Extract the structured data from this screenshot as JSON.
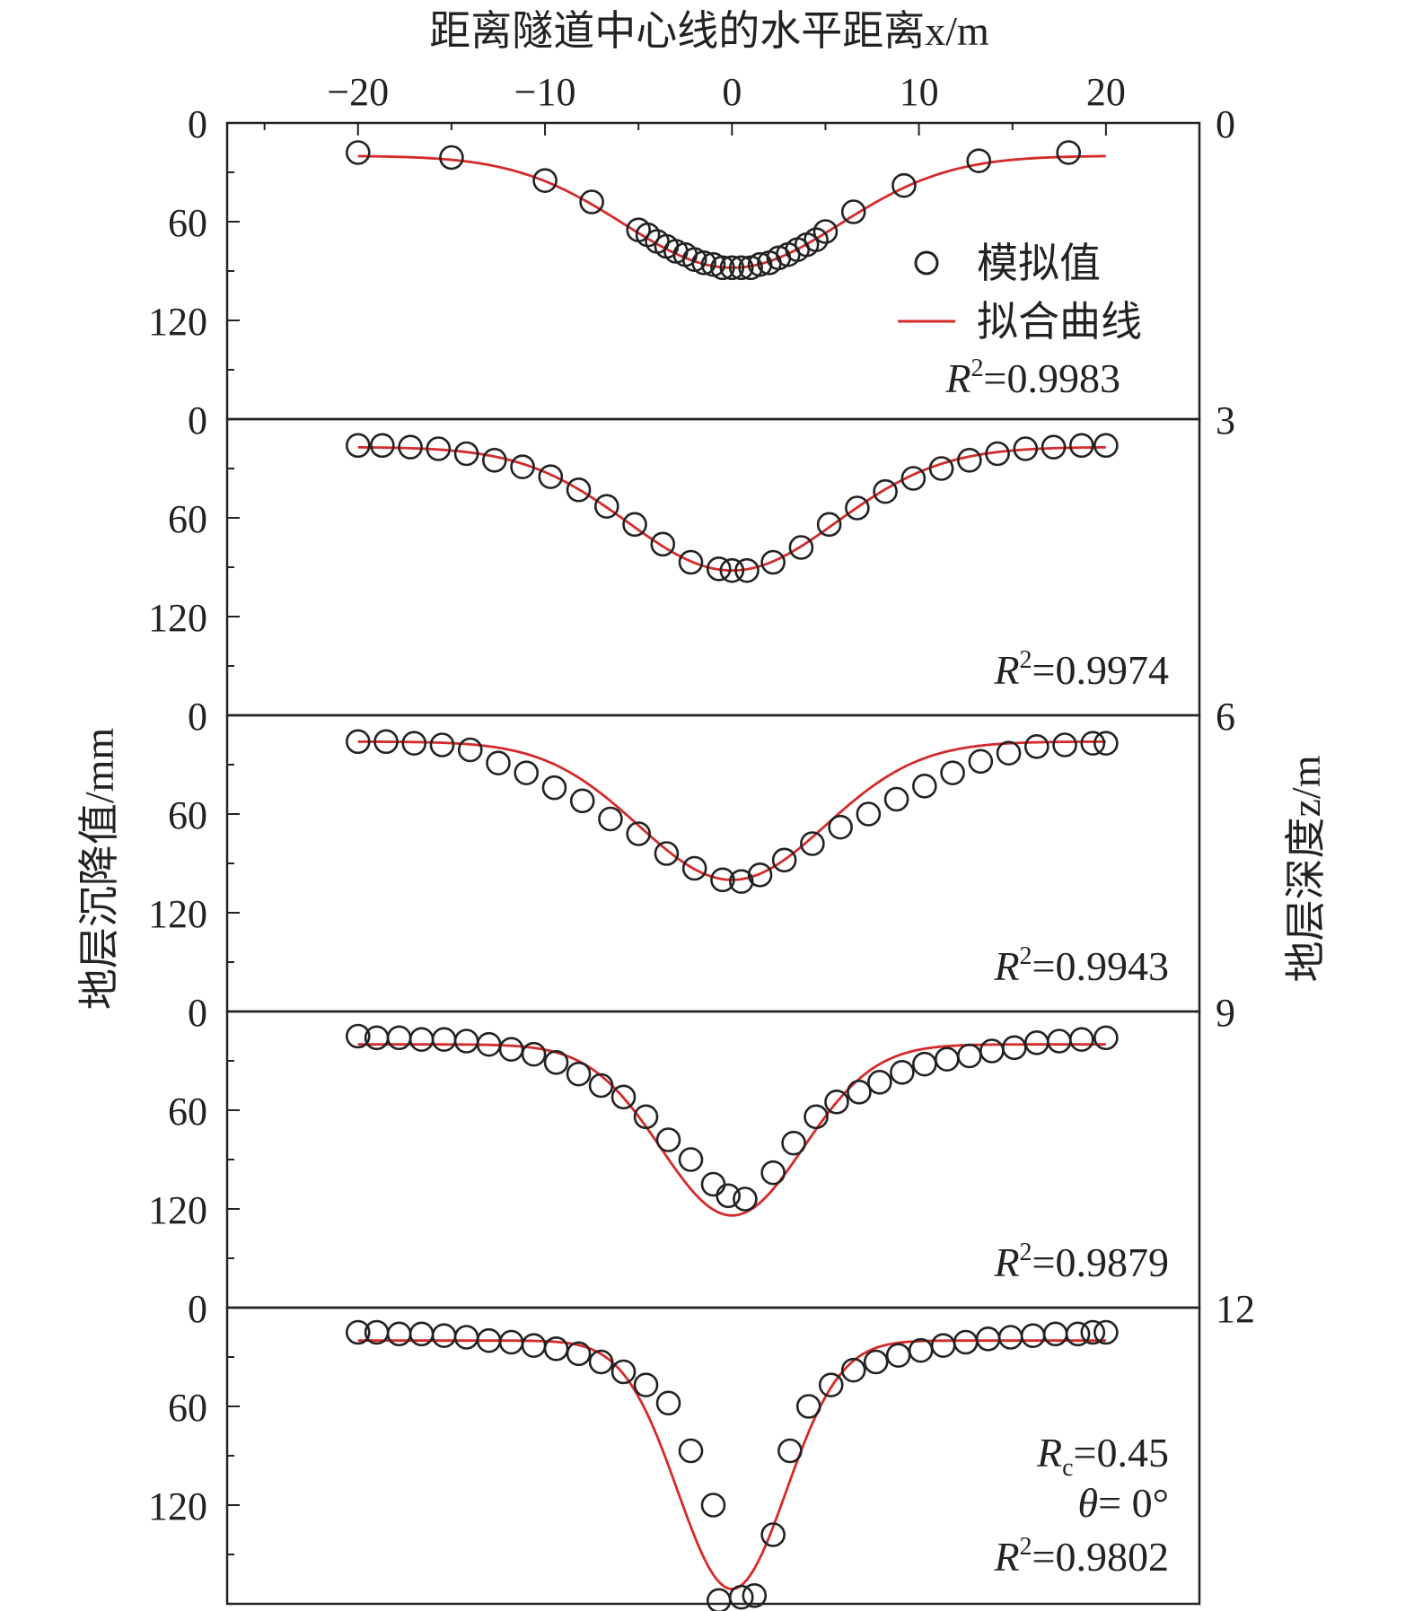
{
  "chart_data": {
    "type": "scatter",
    "xlabel": "距离隧道中心线的水平距离x/m",
    "ylabel_left": "地层沉降值/mm",
    "ylabel_right": "地层深度z/m",
    "x_ticks": [
      "−20",
      "−10",
      "0",
      "10",
      "20"
    ],
    "x_tick_values": [
      -20,
      -10,
      0,
      10,
      20
    ],
    "xlim": [
      -27,
      25
    ],
    "ylim_panel": [
      0,
      180
    ],
    "y_ticks_left": [
      "0",
      "60",
      "120"
    ],
    "y_tick_values_left": [
      0,
      60,
      120
    ],
    "right_axis_ticks": [
      "0",
      "3",
      "6",
      "9",
      "12"
    ],
    "legend": {
      "placement": "top-right",
      "scatter_label": "模拟值",
      "line_label": "拟合曲线",
      "line_color": "#d42a2a"
    },
    "panels": [
      {
        "depth": "0",
        "r2_label": "R",
        "r2_sup": "2",
        "r2_value": "=0.9983",
        "fit": {
          "amplitude": 68,
          "offset": 20,
          "sigma": 5.8
        },
        "simulated": [
          [
            -20,
            18
          ],
          [
            -15,
            21
          ],
          [
            -10,
            35
          ],
          [
            -7.5,
            48
          ],
          [
            -5,
            65
          ],
          [
            -4.5,
            68
          ],
          [
            -4,
            72
          ],
          [
            -3.5,
            75
          ],
          [
            -3,
            78
          ],
          [
            -2.5,
            80
          ],
          [
            -2,
            83
          ],
          [
            -1.5,
            85
          ],
          [
            -1,
            86
          ],
          [
            -0.5,
            88
          ],
          [
            0,
            88
          ],
          [
            0.5,
            88
          ],
          [
            1,
            88
          ],
          [
            1.5,
            86
          ],
          [
            2,
            85
          ],
          [
            2.5,
            82
          ],
          [
            3,
            80
          ],
          [
            3.5,
            77
          ],
          [
            4,
            74
          ],
          [
            4.5,
            71
          ],
          [
            5,
            66
          ],
          [
            6.5,
            54
          ],
          [
            9.2,
            38
          ],
          [
            13.2,
            23
          ],
          [
            18,
            18
          ]
        ]
      },
      {
        "depth": "3",
        "r2_label": "R",
        "r2_sup": "2",
        "r2_value": "=0.9974",
        "fit": {
          "amplitude": 75,
          "offset": 17,
          "sigma": 5.6
        },
        "simulated": [
          [
            -20,
            16
          ],
          [
            -18.7,
            16
          ],
          [
            -17.2,
            17
          ],
          [
            -15.7,
            18
          ],
          [
            -14.2,
            21
          ],
          [
            -12.7,
            25
          ],
          [
            -11.2,
            29
          ],
          [
            -9.7,
            35
          ],
          [
            -8.2,
            43
          ],
          [
            -6.7,
            53
          ],
          [
            -5.2,
            64
          ],
          [
            -3.7,
            76
          ],
          [
            -2.2,
            87
          ],
          [
            -0.7,
            91
          ],
          [
            0,
            92
          ],
          [
            0.8,
            92
          ],
          [
            2.2,
            87
          ],
          [
            3.7,
            78
          ],
          [
            5.2,
            64
          ],
          [
            6.7,
            54
          ],
          [
            8.2,
            44
          ],
          [
            9.7,
            36
          ],
          [
            11.2,
            30
          ],
          [
            12.7,
            25
          ],
          [
            14.2,
            21
          ],
          [
            15.7,
            18
          ],
          [
            17.2,
            17
          ],
          [
            18.7,
            16
          ],
          [
            20,
            16
          ]
        ]
      },
      {
        "depth": "6",
        "r2_label": "R",
        "r2_sup": "2",
        "r2_value": "=0.9943",
        "fit": {
          "amplitude": 84,
          "offset": 16,
          "sigma": 5.0
        },
        "simulated": [
          [
            -20,
            16
          ],
          [
            -18.5,
            16
          ],
          [
            -17,
            17
          ],
          [
            -15.5,
            18
          ],
          [
            -14,
            21
          ],
          [
            -12.5,
            29
          ],
          [
            -11,
            35
          ],
          [
            -9.5,
            44
          ],
          [
            -8,
            52
          ],
          [
            -6.5,
            63
          ],
          [
            -5,
            72
          ],
          [
            -3.5,
            84
          ],
          [
            -2,
            93
          ],
          [
            -0.5,
            100
          ],
          [
            0.5,
            101
          ],
          [
            1.5,
            97
          ],
          [
            2.8,
            88
          ],
          [
            4.3,
            78
          ],
          [
            5.8,
            68
          ],
          [
            7.3,
            60
          ],
          [
            8.8,
            51
          ],
          [
            10.3,
            43
          ],
          [
            11.8,
            35
          ],
          [
            13.3,
            28
          ],
          [
            14.8,
            23
          ],
          [
            16.3,
            19
          ],
          [
            17.8,
            18
          ],
          [
            19.3,
            17
          ],
          [
            20,
            17
          ]
        ]
      },
      {
        "depth": "9",
        "r2_label": "R",
        "r2_sup": "2",
        "r2_value": "=0.9879",
        "fit": {
          "amplitude": 104,
          "offset": 20,
          "sigma": 3.8
        },
        "simulated": [
          [
            -20,
            15
          ],
          [
            -19,
            16
          ],
          [
            -17.8,
            16
          ],
          [
            -16.6,
            17
          ],
          [
            -15.4,
            17
          ],
          [
            -14.2,
            18
          ],
          [
            -13,
            20
          ],
          [
            -11.8,
            23
          ],
          [
            -10.6,
            26
          ],
          [
            -9.4,
            31
          ],
          [
            -8.2,
            38
          ],
          [
            -7,
            45
          ],
          [
            -5.8,
            52
          ],
          [
            -4.6,
            64
          ],
          [
            -3.4,
            78
          ],
          [
            -2.2,
            90
          ],
          [
            -1,
            105
          ],
          [
            -0.2,
            112
          ],
          [
            0.7,
            114
          ],
          [
            2.2,
            98
          ],
          [
            3.3,
            80
          ],
          [
            4.5,
            64
          ],
          [
            5.6,
            55
          ],
          [
            6.8,
            49
          ],
          [
            7.9,
            43
          ],
          [
            9.1,
            37
          ],
          [
            10.3,
            32
          ],
          [
            11.5,
            29
          ],
          [
            12.7,
            27
          ],
          [
            13.9,
            24
          ],
          [
            15.1,
            22
          ],
          [
            16.3,
            19
          ],
          [
            17.5,
            18
          ],
          [
            18.7,
            17
          ],
          [
            20,
            16
          ]
        ]
      },
      {
        "depth": "12",
        "r2_label": "R",
        "r2_sup": "2",
        "r2_value": "=0.9802",
        "rc_label": "R",
        "rc_sub": "c",
        "rc_value": "=0.45",
        "theta_label": "θ",
        "theta_value": "= 0°",
        "fit": {
          "amplitude": 151,
          "offset": 20,
          "sigma": 2.9
        },
        "simulated": [
          [
            -20,
            15
          ],
          [
            -19,
            15
          ],
          [
            -17.8,
            16
          ],
          [
            -16.6,
            16
          ],
          [
            -15.4,
            17
          ],
          [
            -14.2,
            18
          ],
          [
            -13,
            20
          ],
          [
            -11.8,
            21
          ],
          [
            -10.6,
            23
          ],
          [
            -9.4,
            25
          ],
          [
            -8.2,
            28
          ],
          [
            -7,
            33
          ],
          [
            -5.8,
            39
          ],
          [
            -4.6,
            47
          ],
          [
            -3.4,
            58
          ],
          [
            -2.2,
            87
          ],
          [
            -1,
            120
          ],
          [
            -0.7,
            178
          ],
          [
            0.5,
            176
          ],
          [
            1.2,
            175
          ],
          [
            2.2,
            138
          ],
          [
            3.1,
            87
          ],
          [
            4.1,
            60
          ],
          [
            5.3,
            47
          ],
          [
            6.5,
            38
          ],
          [
            7.7,
            33
          ],
          [
            8.9,
            29
          ],
          [
            10.1,
            26
          ],
          [
            11.3,
            23
          ],
          [
            12.5,
            21
          ],
          [
            13.7,
            19
          ],
          [
            14.9,
            18
          ],
          [
            16.1,
            17
          ],
          [
            17.3,
            16
          ],
          [
            18.5,
            16
          ],
          [
            19.3,
            15
          ],
          [
            20,
            15
          ]
        ]
      }
    ]
  }
}
